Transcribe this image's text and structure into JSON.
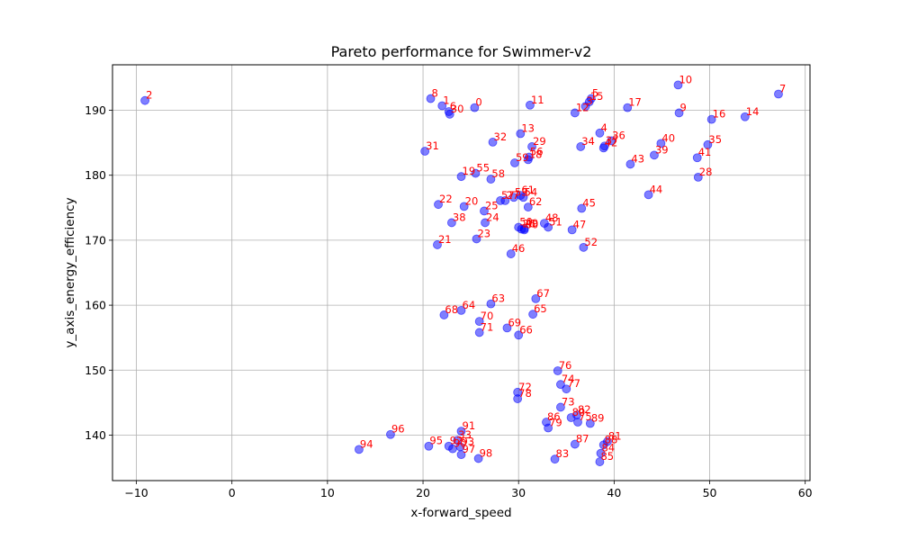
{
  "chart_data": {
    "type": "scatter",
    "title": "Pareto performance for Swimmer-v2",
    "xlabel": "x-forward_speed",
    "ylabel": "y_axis_energy_efficiency",
    "xlim": [
      -12.5,
      60.5
    ],
    "ylim": [
      133.0,
      197.0
    ],
    "xticks": [
      -10,
      0,
      10,
      20,
      30,
      40,
      50,
      60
    ],
    "yticks": [
      140,
      150,
      160,
      170,
      180,
      190
    ],
    "grid": true,
    "point_color": "#0000ff",
    "label_color": "#ff0000",
    "points": [
      {
        "label": "0",
        "x": 25.4,
        "y": 190.4
      },
      {
        "label": "1",
        "x": 22.0,
        "y": 190.7
      },
      {
        "label": "2",
        "x": -9.1,
        "y": 191.5
      },
      {
        "label": "3",
        "x": 37.0,
        "y": 190.6
      },
      {
        "label": "4",
        "x": 38.5,
        "y": 186.5
      },
      {
        "label": "5",
        "x": 37.6,
        "y": 191.8
      },
      {
        "label": "6",
        "x": 22.7,
        "y": 189.8
      },
      {
        "label": "7",
        "x": 57.2,
        "y": 192.5
      },
      {
        "label": "8",
        "x": 20.8,
        "y": 191.8
      },
      {
        "label": "9",
        "x": 46.8,
        "y": 189.6
      },
      {
        "label": "10",
        "x": 46.7,
        "y": 193.9
      },
      {
        "label": "11",
        "x": 31.2,
        "y": 190.8
      },
      {
        "label": "12",
        "x": 35.9,
        "y": 189.6
      },
      {
        "label": "13",
        "x": 30.2,
        "y": 186.4
      },
      {
        "label": "14",
        "x": 53.7,
        "y": 189.0
      },
      {
        "label": "15",
        "x": 37.4,
        "y": 191.3
      },
      {
        "label": "16",
        "x": 50.2,
        "y": 188.6
      },
      {
        "label": "17",
        "x": 41.4,
        "y": 190.4
      },
      {
        "label": "18",
        "x": 31.0,
        "y": 182.4
      },
      {
        "label": "19",
        "x": 24.0,
        "y": 179.8
      },
      {
        "label": "20",
        "x": 24.3,
        "y": 175.2
      },
      {
        "label": "21",
        "x": 21.5,
        "y": 169.3
      },
      {
        "label": "22",
        "x": 21.6,
        "y": 175.5
      },
      {
        "label": "23",
        "x": 25.6,
        "y": 170.2
      },
      {
        "label": "24",
        "x": 26.5,
        "y": 172.7
      },
      {
        "label": "25",
        "x": 26.4,
        "y": 174.5
      },
      {
        "label": "26",
        "x": 30.3,
        "y": 171.7
      },
      {
        "label": "27",
        "x": 28.6,
        "y": 176.1
      },
      {
        "label": "28",
        "x": 48.8,
        "y": 179.7
      },
      {
        "label": "29",
        "x": 31.4,
        "y": 184.4
      },
      {
        "label": "30",
        "x": 22.8,
        "y": 189.4
      },
      {
        "label": "31",
        "x": 20.2,
        "y": 183.7
      },
      {
        "label": "32",
        "x": 27.3,
        "y": 185.1
      },
      {
        "label": "33",
        "x": 23.6,
        "y": 139.2
      },
      {
        "label": "34",
        "x": 36.5,
        "y": 184.4
      },
      {
        "label": "35",
        "x": 49.8,
        "y": 184.7
      },
      {
        "label": "36",
        "x": 39.7,
        "y": 185.3
      },
      {
        "label": "37",
        "x": 39.0,
        "y": 184.5
      },
      {
        "label": "38",
        "x": 23.0,
        "y": 172.7
      },
      {
        "label": "39",
        "x": 44.2,
        "y": 183.1
      },
      {
        "label": "40",
        "x": 44.9,
        "y": 184.9
      },
      {
        "label": "41",
        "x": 48.7,
        "y": 182.7
      },
      {
        "label": "42",
        "x": 38.9,
        "y": 184.2
      },
      {
        "label": "43",
        "x": 41.7,
        "y": 181.7
      },
      {
        "label": "44",
        "x": 43.6,
        "y": 177.0
      },
      {
        "label": "45",
        "x": 36.6,
        "y": 174.9
      },
      {
        "label": "46",
        "x": 29.2,
        "y": 167.9
      },
      {
        "label": "47",
        "x": 35.6,
        "y": 171.6
      },
      {
        "label": "48",
        "x": 32.7,
        "y": 172.6
      },
      {
        "label": "49",
        "x": 30.6,
        "y": 171.8
      },
      {
        "label": "50",
        "x": 30.0,
        "y": 172.0
      },
      {
        "label": "51",
        "x": 33.1,
        "y": 172.0
      },
      {
        "label": "52",
        "x": 36.8,
        "y": 168.9
      },
      {
        "label": "53",
        "x": 29.5,
        "y": 176.6
      },
      {
        "label": "54",
        "x": 30.5,
        "y": 176.6
      },
      {
        "label": "55",
        "x": 25.5,
        "y": 180.3
      },
      {
        "label": "56",
        "x": 31.1,
        "y": 182.8
      },
      {
        "label": "57",
        "x": 28.1,
        "y": 176.1
      },
      {
        "label": "58",
        "x": 27.1,
        "y": 179.4
      },
      {
        "label": "59",
        "x": 29.6,
        "y": 181.9
      },
      {
        "label": "60",
        "x": 30.6,
        "y": 171.6
      },
      {
        "label": "61",
        "x": 30.2,
        "y": 176.9
      },
      {
        "label": "62",
        "x": 31.0,
        "y": 175.1
      },
      {
        "label": "63",
        "x": 27.1,
        "y": 160.2
      },
      {
        "label": "64",
        "x": 24.0,
        "y": 159.2
      },
      {
        "label": "65",
        "x": 31.5,
        "y": 158.6
      },
      {
        "label": "66",
        "x": 30.0,
        "y": 155.4
      },
      {
        "label": "67",
        "x": 31.8,
        "y": 161.0
      },
      {
        "label": "68",
        "x": 22.2,
        "y": 158.5
      },
      {
        "label": "69",
        "x": 28.8,
        "y": 156.5
      },
      {
        "label": "70",
        "x": 25.9,
        "y": 157.5
      },
      {
        "label": "71",
        "x": 25.9,
        "y": 155.8
      },
      {
        "label": "72",
        "x": 29.9,
        "y": 146.6
      },
      {
        "label": "73",
        "x": 34.4,
        "y": 144.3
      },
      {
        "label": "74",
        "x": 34.4,
        "y": 147.8
      },
      {
        "label": "75",
        "x": 36.2,
        "y": 142.0
      },
      {
        "label": "76",
        "x": 34.1,
        "y": 149.9
      },
      {
        "label": "77",
        "x": 35.0,
        "y": 147.1
      },
      {
        "label": "78",
        "x": 29.9,
        "y": 145.6
      },
      {
        "label": "79",
        "x": 33.1,
        "y": 141.1
      },
      {
        "label": "80",
        "x": 35.5,
        "y": 142.7
      },
      {
        "label": "81",
        "x": 39.3,
        "y": 139.0
      },
      {
        "label": "82",
        "x": 36.1,
        "y": 143.1
      },
      {
        "label": "83",
        "x": 33.8,
        "y": 136.3
      },
      {
        "label": "84",
        "x": 38.6,
        "y": 137.2
      },
      {
        "label": "85",
        "x": 38.5,
        "y": 135.9
      },
      {
        "label": "86",
        "x": 32.9,
        "y": 142.0
      },
      {
        "label": "87",
        "x": 35.9,
        "y": 138.6
      },
      {
        "label": "88",
        "x": 38.9,
        "y": 138.5
      },
      {
        "label": "89",
        "x": 37.5,
        "y": 141.8
      },
      {
        "label": "90",
        "x": 23.1,
        "y": 137.9
      },
      {
        "label": "91",
        "x": 24.0,
        "y": 140.6
      },
      {
        "label": "92",
        "x": 22.7,
        "y": 138.3
      },
      {
        "label": "93",
        "x": 23.9,
        "y": 138.2
      },
      {
        "label": "94",
        "x": 13.3,
        "y": 137.8
      },
      {
        "label": "95",
        "x": 20.6,
        "y": 138.3
      },
      {
        "label": "96",
        "x": 16.6,
        "y": 140.1
      },
      {
        "label": "97",
        "x": 24.0,
        "y": 137.0
      },
      {
        "label": "98",
        "x": 25.8,
        "y": 136.4
      }
    ]
  }
}
